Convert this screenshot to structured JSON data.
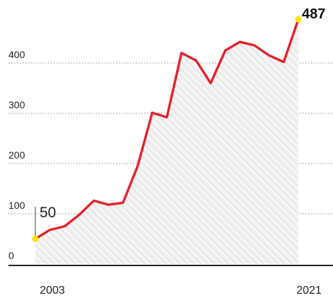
{
  "chart_data": {
    "type": "area",
    "title": "",
    "xlabel": "",
    "ylabel": "",
    "x": [
      2003,
      2004,
      2005,
      2006,
      2007,
      2008,
      2009,
      2010,
      2011,
      2012,
      2013,
      2014,
      2015,
      2016,
      2017,
      2018,
      2019,
      2020,
      2021
    ],
    "series": [
      {
        "values": [
          50,
          68,
          75,
          98,
          126,
          118,
          122,
          195,
          301,
          292,
          420,
          405,
          360,
          425,
          442,
          435,
          415,
          402,
          487
        ]
      }
    ],
    "xlim": [
      2003,
      2021
    ],
    "ylim": [
      0,
      500
    ],
    "yticks": [
      0,
      100,
      200,
      300,
      400
    ],
    "ytick_labels": [
      "0",
      "100",
      "200",
      "300",
      "400"
    ],
    "xtick_labels": [
      "2003",
      "2021"
    ],
    "grid": true,
    "grid_style": "dotted-horizontal",
    "legend": "none",
    "annotations": {
      "start_label": "50",
      "end_label": "487"
    },
    "colors": {
      "line": "#e4222b",
      "endpoint": "#ffe600",
      "hatch": "#cfcfcf",
      "area_fill": "#f4f4f4"
    }
  }
}
